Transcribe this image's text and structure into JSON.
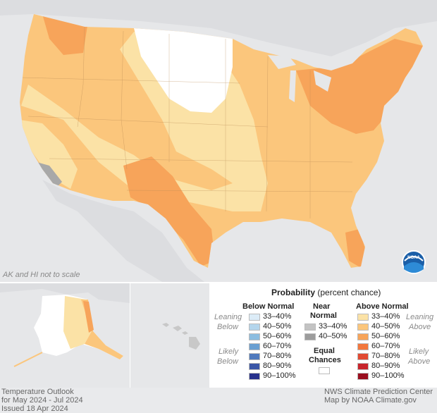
{
  "map": {
    "note": "AK and HI not to scale",
    "logo_text": "NOAA"
  },
  "legend": {
    "title_bold": "Probability",
    "title_rest": " (percent chance)",
    "below_header": "Below Normal",
    "near_header_1": "Near",
    "near_header_2": "Normal",
    "above_header": "Above Normal",
    "leaning_below_1": "Leaning",
    "leaning_below_2": "Below",
    "likely_below_1": "Likely",
    "likely_below_2": "Below",
    "leaning_above_1": "Leaning",
    "leaning_above_2": "Above",
    "likely_above_1": "Likely",
    "likely_above_2": "Above",
    "equal_1": "Equal",
    "equal_2": "Chances",
    "below": [
      {
        "label": "33–40%",
        "color": "#dcecf7"
      },
      {
        "label": "40–50%",
        "color": "#b3d5ec"
      },
      {
        "label": "50–60%",
        "color": "#8cbde0"
      },
      {
        "label": "60–70%",
        "color": "#6a9fd1"
      },
      {
        "label": "70–80%",
        "color": "#4f79bd"
      },
      {
        "label": "80–90%",
        "color": "#3a56a6"
      },
      {
        "label": "90–100%",
        "color": "#27318c"
      }
    ],
    "near": [
      {
        "label": "33–40%",
        "color": "#c3c3c3"
      },
      {
        "label": "40–50%",
        "color": "#9c9c9c"
      }
    ],
    "above": [
      {
        "label": "33–40%",
        "color": "#fbe2a6"
      },
      {
        "label": "40–50%",
        "color": "#fbc67c"
      },
      {
        "label": "50–60%",
        "color": "#f7a45a"
      },
      {
        "label": "60–70%",
        "color": "#f2773d"
      },
      {
        "label": "70–80%",
        "color": "#e14a32"
      },
      {
        "label": "80–90%",
        "color": "#c7252c"
      },
      {
        "label": "90–100%",
        "color": "#990f1f"
      }
    ],
    "equal_color": "#ffffff"
  },
  "footer": {
    "left_1": "Temperature Outlook",
    "left_2": "for May 2024 - Jul 2024",
    "left_3": "Issued 18 Apr 2024",
    "right_1": "NWS Climate Prediction Center",
    "right_2": "Map by NOAA Climate.gov"
  }
}
